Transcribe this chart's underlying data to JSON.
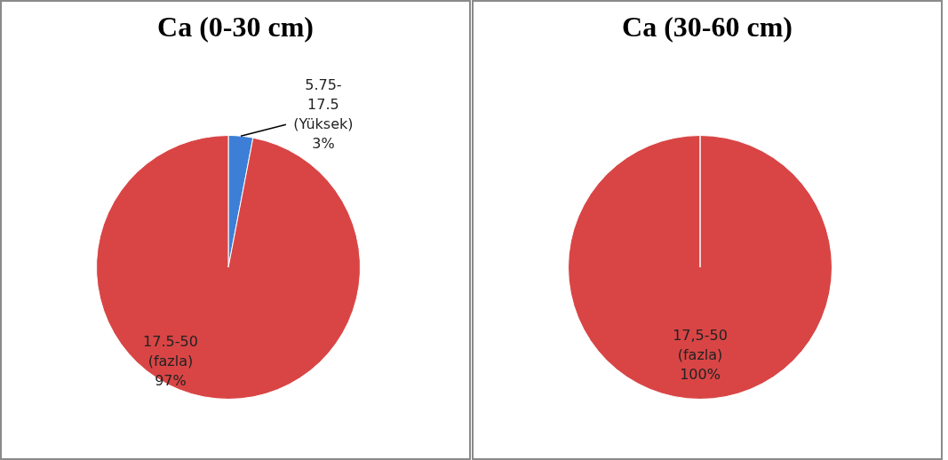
{
  "chart_data": [
    {
      "type": "pie",
      "title": "Ca (0-30 cm)",
      "categories": [
        "5.75- 17.5 (Yüksek)",
        "17.5-50 (fazla)"
      ],
      "values": [
        3,
        97
      ],
      "colors": [
        "#3d7fd6",
        "#d94545"
      ],
      "value_labels": [
        "3%",
        "97%"
      ],
      "legend": false
    },
    {
      "type": "pie",
      "title": "Ca (30-60 cm)",
      "categories": [
        "17,5-50 (fazla)"
      ],
      "values": [
        100
      ],
      "colors": [
        "#d94545"
      ],
      "value_labels": [
        "100%"
      ],
      "legend": false
    }
  ]
}
